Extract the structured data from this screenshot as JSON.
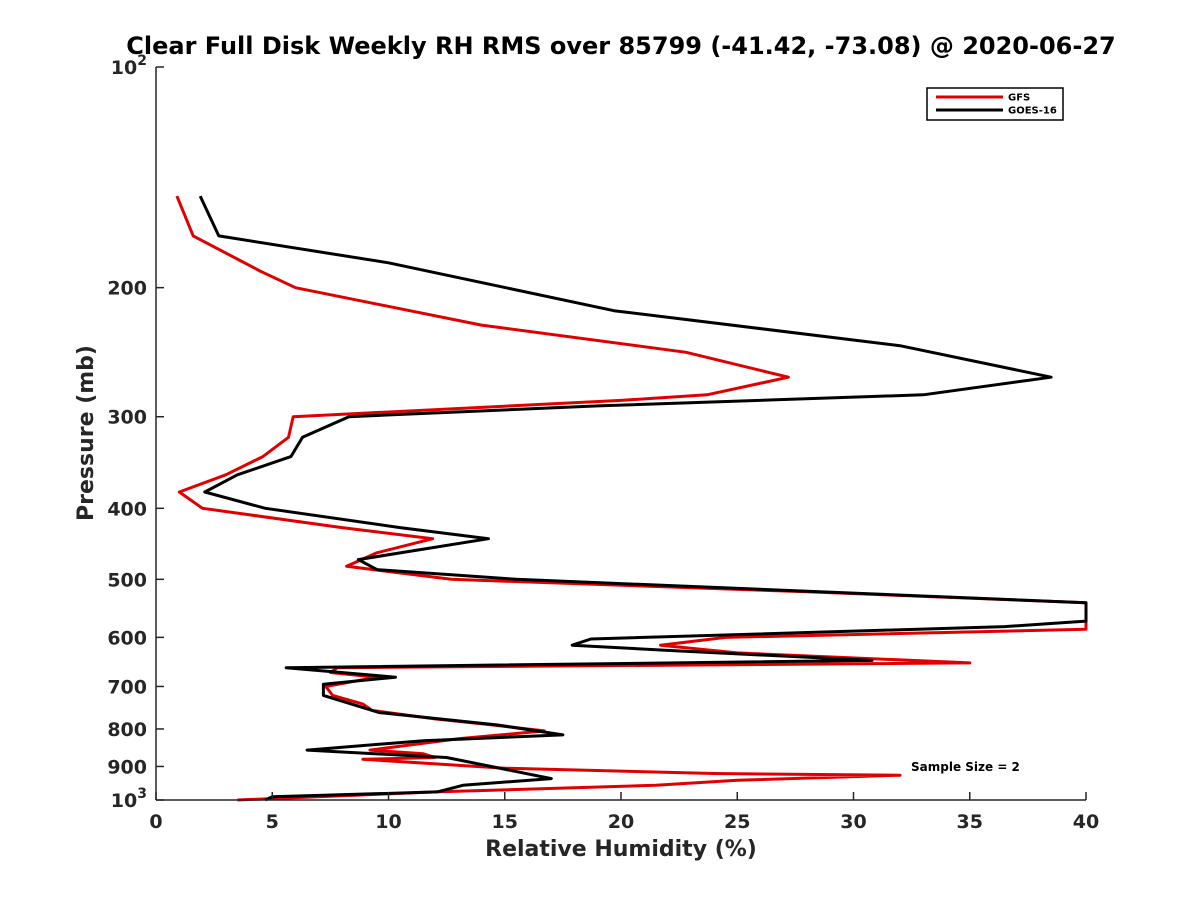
{
  "chart_data": {
    "type": "line",
    "title": "Clear Full Disk Weekly RH RMS over 85799 (-41.42, -73.08) @ 2020-06-27",
    "xlabel": "Relative Humidity (%)",
    "ylabel": "Pressure (mb)",
    "xlim": [
      0,
      40
    ],
    "ylim": [
      100,
      1000
    ],
    "y_scale": "log",
    "y_reversed": true,
    "grid": false,
    "legend_position": "top-right",
    "x_ticks": [
      "0",
      "5",
      "10",
      "15",
      "20",
      "25",
      "30",
      "35",
      "40"
    ],
    "y_ticks": [
      {
        "value": 100,
        "base": "10",
        "exp": "2"
      },
      {
        "value": 200,
        "label": "200"
      },
      {
        "value": 300,
        "label": "300"
      },
      {
        "value": 400,
        "label": "400"
      },
      {
        "value": 500,
        "label": "500"
      },
      {
        "value": 600,
        "label": "600"
      },
      {
        "value": 700,
        "label": "700"
      },
      {
        "value": 800,
        "label": "800"
      },
      {
        "value": 900,
        "label": "900"
      },
      {
        "value": 1000,
        "base": "10",
        "exp": "3"
      }
    ],
    "annotation": "Sample Size = 2",
    "series": [
      {
        "name": "GFS",
        "color": "#e00000",
        "points": [
          [
            0.9,
            150
          ],
          [
            1.6,
            170
          ],
          [
            4.5,
            190
          ],
          [
            6.0,
            200
          ],
          [
            14,
            225
          ],
          [
            22.8,
            245
          ],
          [
            27.2,
            265
          ],
          [
            23.7,
            280
          ],
          [
            20,
            285
          ],
          [
            5.9,
            300
          ],
          [
            5.7,
            320
          ],
          [
            4.6,
            340
          ],
          [
            3.0,
            360
          ],
          [
            1.0,
            380
          ],
          [
            2.0,
            400
          ],
          [
            8.0,
            425
          ],
          [
            11.9,
            440
          ],
          [
            9.5,
            460
          ],
          [
            8.2,
            480
          ],
          [
            12.7,
            500
          ],
          [
            28,
            520
          ],
          [
            40,
            538
          ],
          [
            40,
            585
          ],
          [
            24.5,
            600
          ],
          [
            21.7,
            615
          ],
          [
            25,
            630
          ],
          [
            35,
            650
          ],
          [
            7.8,
            660
          ],
          [
            7.5,
            670
          ],
          [
            9.5,
            680
          ],
          [
            7.3,
            700
          ],
          [
            7.6,
            720
          ],
          [
            8.9,
            740
          ],
          [
            9.3,
            755
          ],
          [
            12,
            775
          ],
          [
            14.5,
            790
          ],
          [
            16.7,
            805
          ],
          [
            13,
            825
          ],
          [
            9.2,
            855
          ],
          [
            11.5,
            865
          ],
          [
            12,
            875
          ],
          [
            8.9,
            880
          ],
          [
            15,
            905
          ],
          [
            24,
            920
          ],
          [
            32,
            925
          ],
          [
            25,
            940
          ],
          [
            21.5,
            955
          ],
          [
            12,
            975
          ],
          [
            3.5,
            1000
          ]
        ]
      },
      {
        "name": "GOES-16",
        "color": "#000000",
        "points": [
          [
            1.9,
            150
          ],
          [
            2.7,
            170
          ],
          [
            10,
            185
          ],
          [
            19.7,
            215
          ],
          [
            32,
            240
          ],
          [
            38.5,
            265
          ],
          [
            33,
            280
          ],
          [
            19,
            290
          ],
          [
            8.3,
            300
          ],
          [
            6.3,
            320
          ],
          [
            5.8,
            340
          ],
          [
            3.5,
            360
          ],
          [
            2.1,
            380
          ],
          [
            4.7,
            400
          ],
          [
            10.5,
            425
          ],
          [
            14.3,
            440
          ],
          [
            8.7,
            470
          ],
          [
            9.5,
            485
          ],
          [
            15.5,
            500
          ],
          [
            40,
            538
          ],
          [
            40,
            570
          ],
          [
            36.5,
            580
          ],
          [
            18.7,
            603
          ],
          [
            17.9,
            615
          ],
          [
            22,
            625
          ],
          [
            30.8,
            645
          ],
          [
            5.6,
            660
          ],
          [
            10.3,
            680
          ],
          [
            7.2,
            695
          ],
          [
            7.2,
            720
          ],
          [
            9.6,
            760
          ],
          [
            14.7,
            790
          ],
          [
            17.5,
            815
          ],
          [
            11.5,
            830
          ],
          [
            6.5,
            855
          ],
          [
            12.5,
            875
          ],
          [
            17,
            935
          ],
          [
            13.2,
            955
          ],
          [
            12.1,
            975
          ],
          [
            5,
            990
          ],
          [
            4.7,
            1000
          ]
        ]
      }
    ]
  }
}
